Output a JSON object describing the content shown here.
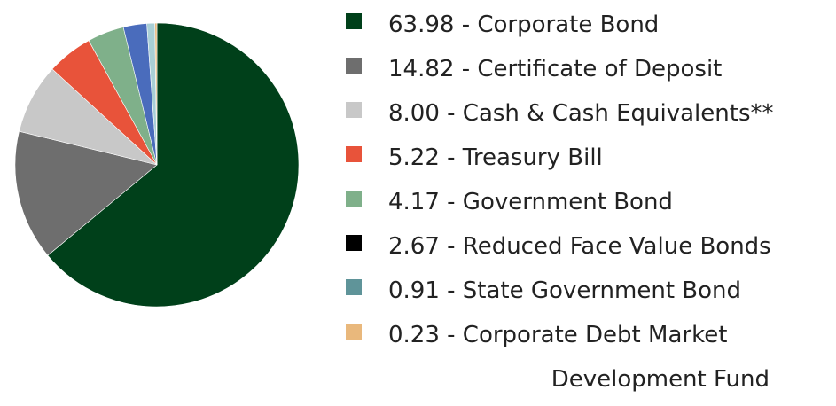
{
  "chart_data": {
    "type": "pie",
    "categories": [
      "63.98 - Corporate Bond",
      "14.82 - Certificate of Deposit",
      "8.00 - Cash & Cash Equivalents**",
      "5.22 - Treasury Bill",
      "4.17 - Government Bond",
      "2.67 - Reduced Face Value Bonds",
      "0.91 - State Government Bond",
      "0.23 - Corporate Debt Market Development Fund"
    ],
    "values": [
      63.98,
      14.82,
      8.0,
      5.22,
      4.17,
      2.67,
      0.91,
      0.23
    ],
    "colors": [
      "#00401a",
      "#6e6e6e",
      "#c8c8c8",
      "#e8533a",
      "#7fb08a",
      "#4a6cbc",
      "#a9cfd6",
      "#e9b87c"
    ],
    "legend_colors": [
      "#00401a",
      "#6e6e6e",
      "#c8c8c8",
      "#e8533a",
      "#7fb08a",
      "#000000",
      "#5f9499",
      "#e9b87c"
    ]
  }
}
